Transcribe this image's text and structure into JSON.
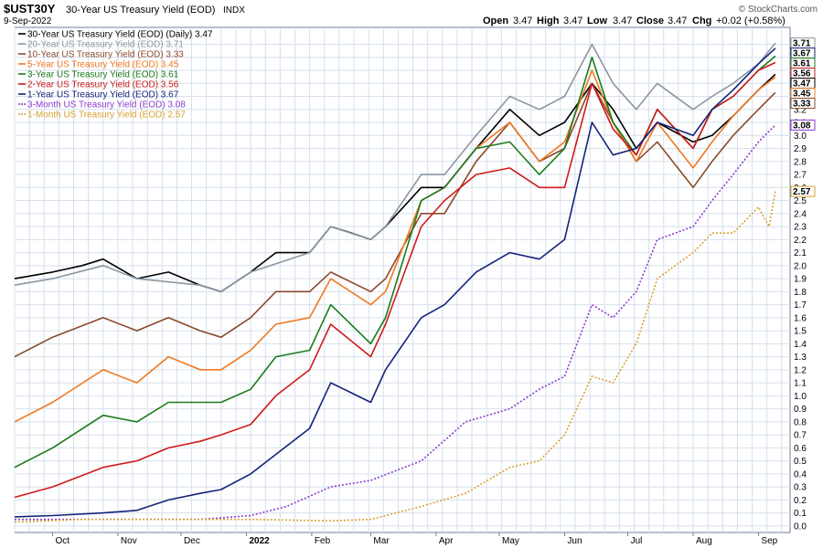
{
  "header": {
    "symbol": "$UST30Y",
    "name": "30-Year US Treasury Yield (EOD)",
    "exchange": "INDX",
    "date": "9-Sep-2022",
    "open_label": "Open",
    "open": "3.47",
    "high_label": "High",
    "high": "3.47",
    "low_label": "Low",
    "low": "3.47",
    "close_label": "Close",
    "close": "3.47",
    "chg_label": "Chg",
    "chg": "+0.02 (+0.58%)",
    "copyright": "© StockCharts.com"
  },
  "chart_data": {
    "type": "line",
    "x_ticks": [
      "Oct",
      "Nov",
      "Dec",
      "2022",
      "Feb",
      "Mar",
      "Apr",
      "May",
      "Jun",
      "Jul",
      "Aug",
      "Sep"
    ],
    "x_tick_dates": [
      "2021-10-01",
      "2021-11-01",
      "2021-12-01",
      "2022-01-01",
      "2022-02-01",
      "2022-03-01",
      "2022-04-01",
      "2022-05-01",
      "2022-06-01",
      "2022-07-01",
      "2022-08-01",
      "2022-09-01"
    ],
    "x_range": [
      "2021-09-13",
      "2022-09-16"
    ],
    "ylim": [
      -0.05,
      3.83
    ],
    "y_ticks": [
      0.0,
      0.1,
      0.2,
      0.3,
      0.4,
      0.5,
      0.6,
      0.7,
      0.8,
      0.9,
      1.0,
      1.1,
      1.2,
      1.3,
      1.4,
      1.5,
      1.6,
      1.7,
      1.8,
      1.9,
      2.0,
      2.1,
      2.2,
      2.3,
      2.4,
      2.5,
      2.6,
      2.7,
      2.8,
      2.9,
      3.0,
      3.1,
      3.2,
      3.3,
      3.4,
      3.5,
      3.6,
      3.7
    ],
    "y_axis_side": "right",
    "grid": true,
    "legend_position": "top-left",
    "series": [
      {
        "legend": "30-Year US Treasury Yield (EOD) (Daily) 3.47",
        "last": "3.47",
        "color": "#000000",
        "dash": false,
        "points": [
          [
            "2021-09-13",
            1.9
          ],
          [
            "2021-10-01",
            1.95
          ],
          [
            "2021-10-15",
            2.0
          ],
          [
            "2021-10-25",
            2.05
          ],
          [
            "2021-11-10",
            1.9
          ],
          [
            "2021-11-25",
            1.95
          ],
          [
            "2021-12-10",
            1.85
          ],
          [
            "2021-12-20",
            1.8
          ],
          [
            "2022-01-03",
            1.95
          ],
          [
            "2022-01-15",
            2.1
          ],
          [
            "2022-01-31",
            2.1
          ],
          [
            "2022-02-10",
            2.3
          ],
          [
            "2022-02-20",
            2.25
          ],
          [
            "2022-03-01",
            2.2
          ],
          [
            "2022-03-08",
            2.3
          ],
          [
            "2022-03-25",
            2.6
          ],
          [
            "2022-04-05",
            2.6
          ],
          [
            "2022-04-20",
            2.9
          ],
          [
            "2022-05-06",
            3.2
          ],
          [
            "2022-05-20",
            3.0
          ],
          [
            "2022-06-01",
            3.1
          ],
          [
            "2022-06-14",
            3.4
          ],
          [
            "2022-06-24",
            3.2
          ],
          [
            "2022-07-05",
            2.9
          ],
          [
            "2022-07-15",
            3.1
          ],
          [
            "2022-08-01",
            2.95
          ],
          [
            "2022-08-10",
            3.0
          ],
          [
            "2022-08-20",
            3.15
          ],
          [
            "2022-09-01",
            3.35
          ],
          [
            "2022-09-09",
            3.47
          ]
        ]
      },
      {
        "legend": "20-Year US Treasury Yield (EOD) 3.71",
        "last": "3.71",
        "color": "#8c96a0",
        "dash": false,
        "points": [
          [
            "2021-09-13",
            1.85
          ],
          [
            "2021-10-01",
            1.9
          ],
          [
            "2021-10-25",
            2.0
          ],
          [
            "2021-11-10",
            1.9
          ],
          [
            "2021-12-10",
            1.85
          ],
          [
            "2021-12-20",
            1.8
          ],
          [
            "2022-01-03",
            1.95
          ],
          [
            "2022-01-31",
            2.1
          ],
          [
            "2022-02-10",
            2.3
          ],
          [
            "2022-03-01",
            2.2
          ],
          [
            "2022-03-08",
            2.3
          ],
          [
            "2022-03-25",
            2.7
          ],
          [
            "2022-04-05",
            2.7
          ],
          [
            "2022-04-20",
            3.0
          ],
          [
            "2022-05-06",
            3.3
          ],
          [
            "2022-05-20",
            3.2
          ],
          [
            "2022-06-01",
            3.3
          ],
          [
            "2022-06-14",
            3.7
          ],
          [
            "2022-06-24",
            3.4
          ],
          [
            "2022-07-05",
            3.2
          ],
          [
            "2022-07-15",
            3.4
          ],
          [
            "2022-08-01",
            3.2
          ],
          [
            "2022-08-10",
            3.3
          ],
          [
            "2022-08-20",
            3.4
          ],
          [
            "2022-09-01",
            3.55
          ],
          [
            "2022-09-09",
            3.71
          ]
        ]
      },
      {
        "legend": "10-Year US Treasury Yield (EOD) 3.33",
        "last": "3.33",
        "color": "#8b4a2b",
        "dash": false,
        "points": [
          [
            "2021-09-13",
            1.3
          ],
          [
            "2021-10-01",
            1.45
          ],
          [
            "2021-10-25",
            1.6
          ],
          [
            "2021-11-10",
            1.5
          ],
          [
            "2021-11-25",
            1.6
          ],
          [
            "2021-12-10",
            1.5
          ],
          [
            "2021-12-20",
            1.45
          ],
          [
            "2022-01-03",
            1.6
          ],
          [
            "2022-01-15",
            1.8
          ],
          [
            "2022-01-31",
            1.8
          ],
          [
            "2022-02-10",
            1.95
          ],
          [
            "2022-03-01",
            1.8
          ],
          [
            "2022-03-08",
            1.9
          ],
          [
            "2022-03-25",
            2.4
          ],
          [
            "2022-04-05",
            2.4
          ],
          [
            "2022-04-20",
            2.8
          ],
          [
            "2022-05-06",
            3.1
          ],
          [
            "2022-05-20",
            2.8
          ],
          [
            "2022-06-01",
            2.9
          ],
          [
            "2022-06-14",
            3.4
          ],
          [
            "2022-06-24",
            3.1
          ],
          [
            "2022-07-05",
            2.8
          ],
          [
            "2022-07-15",
            2.95
          ],
          [
            "2022-08-01",
            2.6
          ],
          [
            "2022-08-10",
            2.8
          ],
          [
            "2022-08-20",
            3.0
          ],
          [
            "2022-09-01",
            3.2
          ],
          [
            "2022-09-09",
            3.33
          ]
        ]
      },
      {
        "legend": "5-Year US Treasury Yield (EOD) 3.45",
        "last": "3.45",
        "color": "#f07820",
        "dash": false,
        "points": [
          [
            "2021-09-13",
            0.8
          ],
          [
            "2021-10-01",
            0.95
          ],
          [
            "2021-10-25",
            1.2
          ],
          [
            "2021-11-10",
            1.1
          ],
          [
            "2021-11-25",
            1.3
          ],
          [
            "2021-12-10",
            1.2
          ],
          [
            "2021-12-20",
            1.2
          ],
          [
            "2022-01-03",
            1.35
          ],
          [
            "2022-01-15",
            1.55
          ],
          [
            "2022-01-31",
            1.6
          ],
          [
            "2022-02-10",
            1.9
          ],
          [
            "2022-03-01",
            1.7
          ],
          [
            "2022-03-08",
            1.8
          ],
          [
            "2022-03-25",
            2.5
          ],
          [
            "2022-04-05",
            2.6
          ],
          [
            "2022-04-20",
            2.9
          ],
          [
            "2022-05-06",
            3.1
          ],
          [
            "2022-05-20",
            2.8
          ],
          [
            "2022-06-01",
            2.95
          ],
          [
            "2022-06-14",
            3.5
          ],
          [
            "2022-06-24",
            3.1
          ],
          [
            "2022-07-05",
            2.8
          ],
          [
            "2022-07-15",
            3.1
          ],
          [
            "2022-08-01",
            2.75
          ],
          [
            "2022-08-10",
            2.95
          ],
          [
            "2022-08-20",
            3.15
          ],
          [
            "2022-09-01",
            3.35
          ],
          [
            "2022-09-09",
            3.45
          ]
        ]
      },
      {
        "legend": "3-Year US Treasury Yield (EOD) 3.61",
        "last": "3.61",
        "color": "#1a7a1a",
        "dash": false,
        "points": [
          [
            "2021-09-13",
            0.45
          ],
          [
            "2021-10-01",
            0.6
          ],
          [
            "2021-10-25",
            0.85
          ],
          [
            "2021-11-10",
            0.8
          ],
          [
            "2021-11-25",
            0.95
          ],
          [
            "2021-12-10",
            0.95
          ],
          [
            "2021-12-20",
            0.95
          ],
          [
            "2022-01-03",
            1.05
          ],
          [
            "2022-01-15",
            1.3
          ],
          [
            "2022-01-31",
            1.35
          ],
          [
            "2022-02-10",
            1.7
          ],
          [
            "2022-03-01",
            1.4
          ],
          [
            "2022-03-08",
            1.6
          ],
          [
            "2022-03-25",
            2.5
          ],
          [
            "2022-04-05",
            2.6
          ],
          [
            "2022-04-20",
            2.9
          ],
          [
            "2022-05-06",
            2.95
          ],
          [
            "2022-05-20",
            2.7
          ],
          [
            "2022-06-01",
            2.9
          ],
          [
            "2022-06-14",
            3.6
          ],
          [
            "2022-06-24",
            3.1
          ],
          [
            "2022-07-05",
            2.85
          ],
          [
            "2022-07-15",
            3.2
          ],
          [
            "2022-08-01",
            2.9
          ],
          [
            "2022-08-10",
            3.2
          ],
          [
            "2022-08-20",
            3.3
          ],
          [
            "2022-09-01",
            3.5
          ],
          [
            "2022-09-09",
            3.61
          ]
        ]
      },
      {
        "legend": "2-Year US Treasury Yield (EOD) 3.56",
        "last": "3.56",
        "color": "#d01a1a",
        "dash": false,
        "points": [
          [
            "2021-09-13",
            0.22
          ],
          [
            "2021-10-01",
            0.3
          ],
          [
            "2021-10-25",
            0.45
          ],
          [
            "2021-11-10",
            0.5
          ],
          [
            "2021-11-25",
            0.6
          ],
          [
            "2021-12-10",
            0.65
          ],
          [
            "2021-12-20",
            0.7
          ],
          [
            "2022-01-03",
            0.78
          ],
          [
            "2022-01-15",
            1.0
          ],
          [
            "2022-01-31",
            1.2
          ],
          [
            "2022-02-10",
            1.55
          ],
          [
            "2022-03-01",
            1.3
          ],
          [
            "2022-03-08",
            1.55
          ],
          [
            "2022-03-25",
            2.3
          ],
          [
            "2022-04-05",
            2.5
          ],
          [
            "2022-04-20",
            2.7
          ],
          [
            "2022-05-06",
            2.75
          ],
          [
            "2022-05-20",
            2.6
          ],
          [
            "2022-06-01",
            2.6
          ],
          [
            "2022-06-14",
            3.4
          ],
          [
            "2022-06-24",
            3.05
          ],
          [
            "2022-07-05",
            2.85
          ],
          [
            "2022-07-15",
            3.2
          ],
          [
            "2022-08-01",
            2.9
          ],
          [
            "2022-08-10",
            3.2
          ],
          [
            "2022-08-20",
            3.3
          ],
          [
            "2022-09-01",
            3.5
          ],
          [
            "2022-09-09",
            3.56
          ]
        ]
      },
      {
        "legend": "1-Year US Treasury Yield (EOD) 3.67",
        "last": "3.67",
        "color": "#13237a",
        "dash": false,
        "points": [
          [
            "2021-09-13",
            0.07
          ],
          [
            "2021-10-01",
            0.08
          ],
          [
            "2021-10-25",
            0.1
          ],
          [
            "2021-11-10",
            0.12
          ],
          [
            "2021-11-25",
            0.2
          ],
          [
            "2021-12-10",
            0.25
          ],
          [
            "2021-12-20",
            0.28
          ],
          [
            "2022-01-03",
            0.4
          ],
          [
            "2022-01-15",
            0.55
          ],
          [
            "2022-01-31",
            0.75
          ],
          [
            "2022-02-10",
            1.1
          ],
          [
            "2022-03-01",
            0.95
          ],
          [
            "2022-03-08",
            1.2
          ],
          [
            "2022-03-25",
            1.6
          ],
          [
            "2022-04-05",
            1.7
          ],
          [
            "2022-04-20",
            1.95
          ],
          [
            "2022-05-06",
            2.1
          ],
          [
            "2022-05-20",
            2.05
          ],
          [
            "2022-06-01",
            2.2
          ],
          [
            "2022-06-14",
            3.1
          ],
          [
            "2022-06-24",
            2.85
          ],
          [
            "2022-07-05",
            2.9
          ],
          [
            "2022-07-15",
            3.1
          ],
          [
            "2022-08-01",
            3.0
          ],
          [
            "2022-08-10",
            3.2
          ],
          [
            "2022-08-20",
            3.35
          ],
          [
            "2022-09-01",
            3.55
          ],
          [
            "2022-09-09",
            3.67
          ]
        ]
      },
      {
        "legend": "3-Month US Treasury Yield (EOD) 3.08",
        "last": "3.08",
        "color": "#8a3ad0",
        "dash": true,
        "points": [
          [
            "2021-09-13",
            0.05
          ],
          [
            "2021-10-15",
            0.05
          ],
          [
            "2021-11-15",
            0.05
          ],
          [
            "2021-12-10",
            0.05
          ],
          [
            "2022-01-03",
            0.08
          ],
          [
            "2022-01-20",
            0.15
          ],
          [
            "2022-02-10",
            0.3
          ],
          [
            "2022-03-01",
            0.35
          ],
          [
            "2022-03-25",
            0.5
          ],
          [
            "2022-04-15",
            0.8
          ],
          [
            "2022-05-06",
            0.9
          ],
          [
            "2022-05-20",
            1.05
          ],
          [
            "2022-06-01",
            1.15
          ],
          [
            "2022-06-14",
            1.7
          ],
          [
            "2022-06-24",
            1.6
          ],
          [
            "2022-07-05",
            1.8
          ],
          [
            "2022-07-15",
            2.2
          ],
          [
            "2022-08-01",
            2.3
          ],
          [
            "2022-08-10",
            2.5
          ],
          [
            "2022-08-20",
            2.7
          ],
          [
            "2022-09-01",
            2.95
          ],
          [
            "2022-09-09",
            3.08
          ]
        ]
      },
      {
        "legend": "1-Month US Treasury Yield (EOD) 2.57",
        "last": "2.57",
        "color": "#d8a030",
        "dash": true,
        "points": [
          [
            "2021-09-13",
            0.03
          ],
          [
            "2021-10-15",
            0.05
          ],
          [
            "2021-11-15",
            0.05
          ],
          [
            "2021-12-10",
            0.05
          ],
          [
            "2022-01-03",
            0.05
          ],
          [
            "2022-02-10",
            0.04
          ],
          [
            "2022-03-01",
            0.05
          ],
          [
            "2022-03-25",
            0.15
          ],
          [
            "2022-04-15",
            0.25
          ],
          [
            "2022-05-06",
            0.45
          ],
          [
            "2022-05-20",
            0.5
          ],
          [
            "2022-06-01",
            0.7
          ],
          [
            "2022-06-14",
            1.15
          ],
          [
            "2022-06-24",
            1.1
          ],
          [
            "2022-07-05",
            1.4
          ],
          [
            "2022-07-15",
            1.9
          ],
          [
            "2022-08-01",
            2.1
          ],
          [
            "2022-08-10",
            2.25
          ],
          [
            "2022-08-20",
            2.25
          ],
          [
            "2022-09-01",
            2.45
          ],
          [
            "2022-09-06",
            2.3
          ],
          [
            "2022-09-09",
            2.57
          ]
        ]
      }
    ]
  }
}
